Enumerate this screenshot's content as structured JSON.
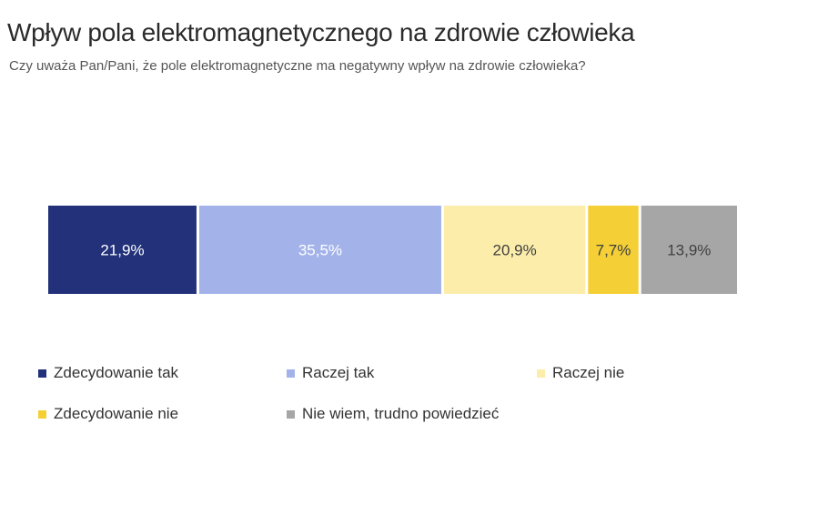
{
  "chart_data": {
    "type": "bar",
    "orientation": "horizontal-stacked",
    "title": "Wpływ pola elektromagnetycznego na zdrowie człowieka",
    "subtitle": "Czy uważa Pan/Pani, że pole elektromagnetyczne ma negatywny wpływ na zdrowie człowieka?",
    "series": [
      {
        "name": "Zdecydowanie tak",
        "value": 21.9,
        "label": "21,9%",
        "color": "#22317a",
        "text_color": "#ffffff"
      },
      {
        "name": "Raczej tak",
        "value": 35.5,
        "label": "35,5%",
        "color": "#a3b3ea",
        "text_color": "#ffffff"
      },
      {
        "name": "Raczej nie",
        "value": 20.9,
        "label": "20,9%",
        "color": "#fcedab",
        "text_color": "#404040"
      },
      {
        "name": "Zdecydowanie nie",
        "value": 7.7,
        "label": "7,7%",
        "color": "#f4cf35",
        "text_color": "#404040"
      },
      {
        "name": "Nie wiem, trudno powiedzieć",
        "value": 13.9,
        "label": "13,9%",
        "color": "#a6a6a6",
        "text_color": "#404040"
      }
    ],
    "legend_position": "bottom",
    "grid": false
  }
}
